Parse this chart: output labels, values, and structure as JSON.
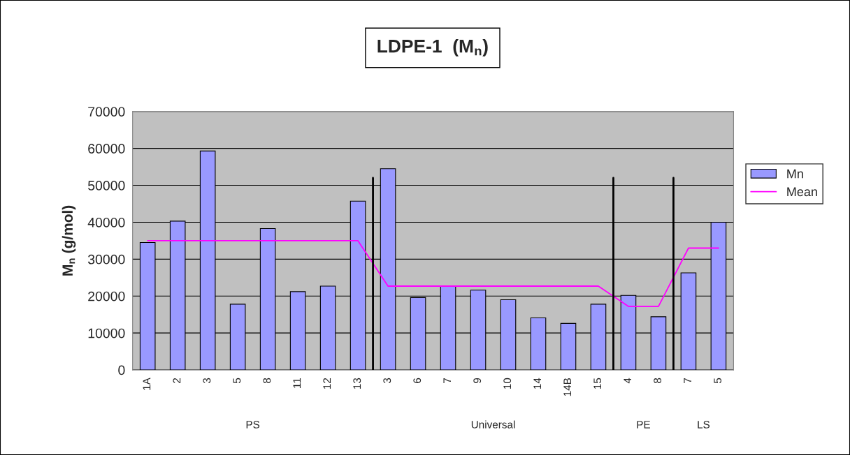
{
  "chart_data": {
    "type": "bar",
    "title": "LDPE-1  (M$_{n}$)",
    "ylabel": "M$_{n}$ (g/mol)",
    "categories": [
      "1A",
      "2",
      "3",
      "5",
      "8",
      "11",
      "12",
      "13",
      "3",
      "6",
      "7",
      "9",
      "10",
      "14",
      "14B",
      "15",
      "4",
      "8",
      "7",
      "5"
    ],
    "series": [
      {
        "name": "Mn",
        "color": "#9999ff",
        "values": [
          34500,
          40300,
          59300,
          17800,
          38300,
          21200,
          22700,
          45700,
          54500,
          19600,
          22800,
          21600,
          19000,
          14100,
          12600,
          17800,
          20200,
          14400,
          26300,
          40000
        ]
      },
      {
        "name": "Mean",
        "type": "line",
        "color": "#ff00ff",
        "values": [
          35000,
          35000,
          35000,
          35000,
          35000,
          35000,
          35000,
          35000,
          22700,
          22700,
          22700,
          22700,
          22700,
          22700,
          22700,
          22700,
          17200,
          17200,
          33000,
          33000
        ]
      }
    ],
    "annotations": [
      "PS",
      "Universal",
      "PE",
      "LS"
    ],
    "ylim": [
      0,
      70000
    ],
    "yticks": [
      0,
      10000,
      20000,
      30000,
      40000,
      50000,
      60000,
      70000
    ],
    "grid": "y",
    "legend": "right"
  }
}
